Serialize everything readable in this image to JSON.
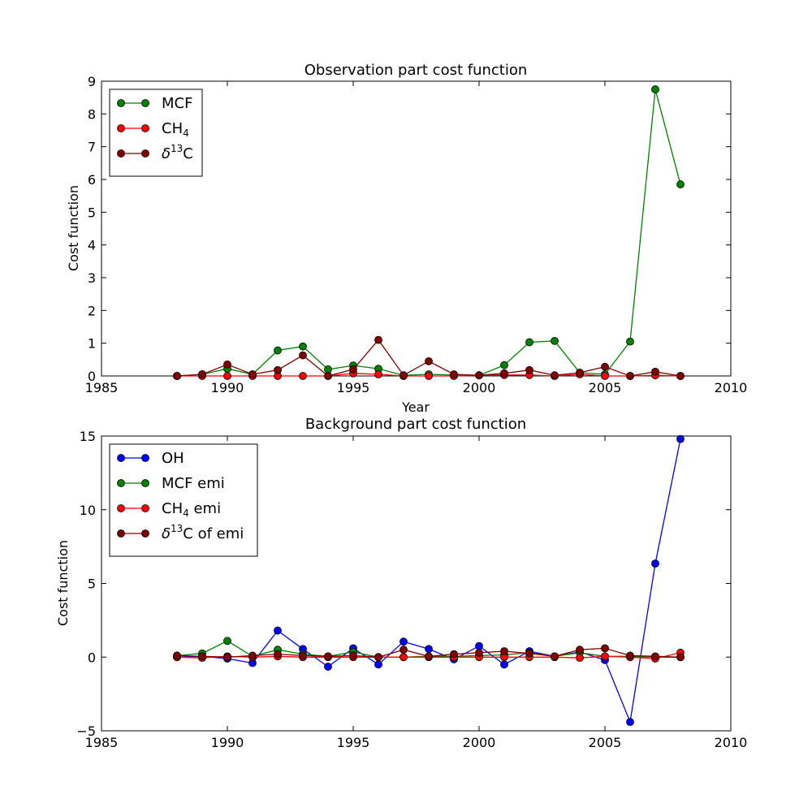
{
  "chart_data": [
    {
      "type": "line",
      "title": "Observation part cost function",
      "xlabel": "Year",
      "ylabel": "Cost function",
      "xlim": [
        1985,
        2010
      ],
      "ylim": [
        0,
        9
      ],
      "xticks": [
        "1985",
        "1990",
        "1995",
        "2000",
        "2005",
        "2010"
      ],
      "yticks": [
        "0",
        "1",
        "2",
        "3",
        "4",
        "5",
        "6",
        "7",
        "8",
        "9"
      ],
      "legend_position": "upper-left",
      "x": [
        1988,
        1989,
        1990,
        1991,
        1992,
        1993,
        1994,
        1995,
        1996,
        1997,
        1998,
        1999,
        2000,
        2001,
        2002,
        2003,
        2004,
        2005,
        2006,
        2007,
        2008
      ],
      "series": [
        {
          "name": "MCF",
          "color": "#008000",
          "values": [
            0.0,
            0.05,
            0.22,
            0.05,
            0.78,
            0.9,
            0.2,
            0.32,
            0.22,
            0.02,
            0.05,
            0.03,
            0.02,
            0.33,
            1.03,
            1.07,
            0.1,
            0.05,
            1.05,
            8.75,
            5.85
          ]
        },
        {
          "name": "CH",
          "name_subscript": "4",
          "color": "#ff0000",
          "values": [
            0.0,
            0.0,
            0.0,
            0.0,
            0.0,
            0.0,
            0.0,
            0.08,
            0.05,
            0.0,
            0.0,
            0.0,
            0.02,
            0.03,
            0.03,
            0.0,
            0.05,
            0.0,
            0.0,
            0.02,
            0.0
          ]
        },
        {
          "name": "C",
          "name_prefix": "δ",
          "name_superscript": "13",
          "color": "#800000",
          "values": [
            0.0,
            0.05,
            0.35,
            0.05,
            0.18,
            0.63,
            0.0,
            0.2,
            1.1,
            0.02,
            0.45,
            0.05,
            0.02,
            0.08,
            0.18,
            0.02,
            0.1,
            0.28,
            0.0,
            0.13,
            0.0
          ]
        }
      ]
    },
    {
      "type": "line",
      "title": "Background part cost function",
      "xlabel": "",
      "ylabel": "Cost function",
      "xlim": [
        1985,
        2010
      ],
      "ylim": [
        -5,
        15
      ],
      "xticks": [
        "1985",
        "1990",
        "1995",
        "2000",
        "2005",
        "2010"
      ],
      "yticks": [
        "−5",
        "0",
        "5",
        "10",
        "15"
      ],
      "legend_position": "upper-left",
      "x": [
        1988,
        1989,
        1990,
        1991,
        1992,
        1993,
        1994,
        1995,
        1996,
        1997,
        1998,
        1999,
        2000,
        2001,
        2002,
        2003,
        2004,
        2005,
        2006,
        2007,
        2008
      ],
      "series": [
        {
          "name": "OH",
          "color": "#0000ff",
          "values": [
            0.0,
            0.05,
            -0.1,
            -0.4,
            1.8,
            0.55,
            -0.65,
            0.6,
            -0.5,
            1.05,
            0.55,
            -0.15,
            0.75,
            -0.5,
            0.4,
            0.05,
            0.35,
            -0.2,
            -4.4,
            6.35,
            14.8
          ]
        },
        {
          "name": "MCF emi",
          "color": "#008000",
          "values": [
            0.1,
            0.25,
            1.1,
            0.05,
            0.5,
            0.2,
            0.05,
            0.35,
            0.0,
            0.0,
            0.05,
            0.05,
            0.1,
            0.15,
            0.3,
            0.05,
            0.3,
            0.05,
            0.05,
            0.0,
            0.0
          ]
        },
        {
          "name": "CH",
          "name_subscript": "4",
          "name_suffix": " emi",
          "color": "#ff0000",
          "values": [
            0.0,
            -0.05,
            0.05,
            0.0,
            0.05,
            0.0,
            0.0,
            0.0,
            0.0,
            0.0,
            0.0,
            0.0,
            0.0,
            0.0,
            0.0,
            0.0,
            -0.05,
            0.05,
            0.0,
            -0.1,
            0.3
          ]
        },
        {
          "name": "C of emi",
          "name_prefix": "δ",
          "name_superscript": "13",
          "color": "#800000",
          "values": [
            0.1,
            0.05,
            0.0,
            0.1,
            0.2,
            0.1,
            0.05,
            0.1,
            0.0,
            0.5,
            0.05,
            0.2,
            0.3,
            0.4,
            0.25,
            0.05,
            0.5,
            0.6,
            0.1,
            0.05,
            0.0
          ]
        }
      ]
    }
  ]
}
